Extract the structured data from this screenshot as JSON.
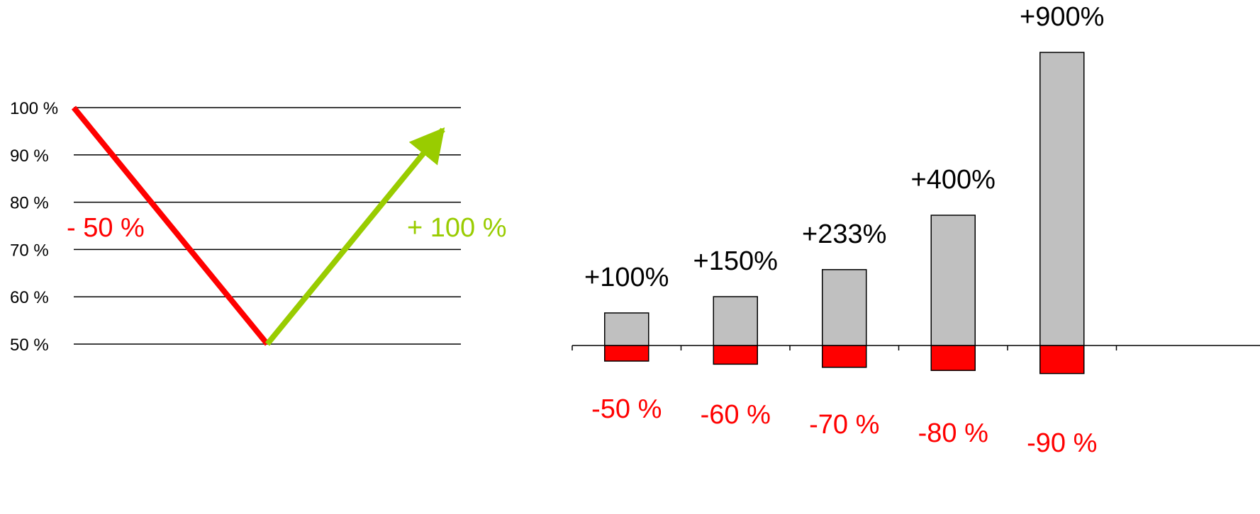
{
  "colors": {
    "loss": "#ff0000",
    "gain": "#99cc00",
    "bar_gain": "#c0c0c0",
    "grid": "#000000",
    "text": "#000000"
  },
  "chart_data": [
    {
      "type": "line",
      "y_ticks": [
        {
          "value": 100,
          "label": "100 %"
        },
        {
          "value": 90,
          "label": "90 %"
        },
        {
          "value": 80,
          "label": "80 %"
        },
        {
          "value": 70,
          "label": "70 %"
        },
        {
          "value": 60,
          "label": "60 %"
        },
        {
          "value": 50,
          "label": "50 %"
        }
      ],
      "ylim": [
        50,
        100
      ],
      "grid": true,
      "legend": "none",
      "x": [
        0,
        1,
        2
      ],
      "series": [
        {
          "values": [
            100,
            50
          ],
          "x": [
            0,
            1
          ],
          "color": "#ff0000",
          "arrow": false,
          "label": "- 50 %"
        },
        {
          "values": [
            50,
            100
          ],
          "x": [
            1,
            2
          ],
          "color": "#99cc00",
          "arrow": true,
          "label": "+ 100 %"
        }
      ]
    },
    {
      "type": "bar",
      "categories": [
        "1",
        "2",
        "3",
        "4",
        "5"
      ],
      "series": [
        {
          "values": [
            100,
            150,
            233,
            400,
            900
          ],
          "labels": [
            "+100%",
            "+150%",
            "+233%",
            "+400%",
            "+900%"
          ],
          "color": "#c0c0c0"
        },
        {
          "values": [
            -50,
            -60,
            -70,
            -80,
            -90
          ],
          "labels": [
            "-50 %",
            "-60 %",
            "-70 %",
            "-80 %",
            "-90 %"
          ],
          "color": "#ff0000"
        }
      ],
      "grid": false,
      "legend": "none"
    }
  ]
}
